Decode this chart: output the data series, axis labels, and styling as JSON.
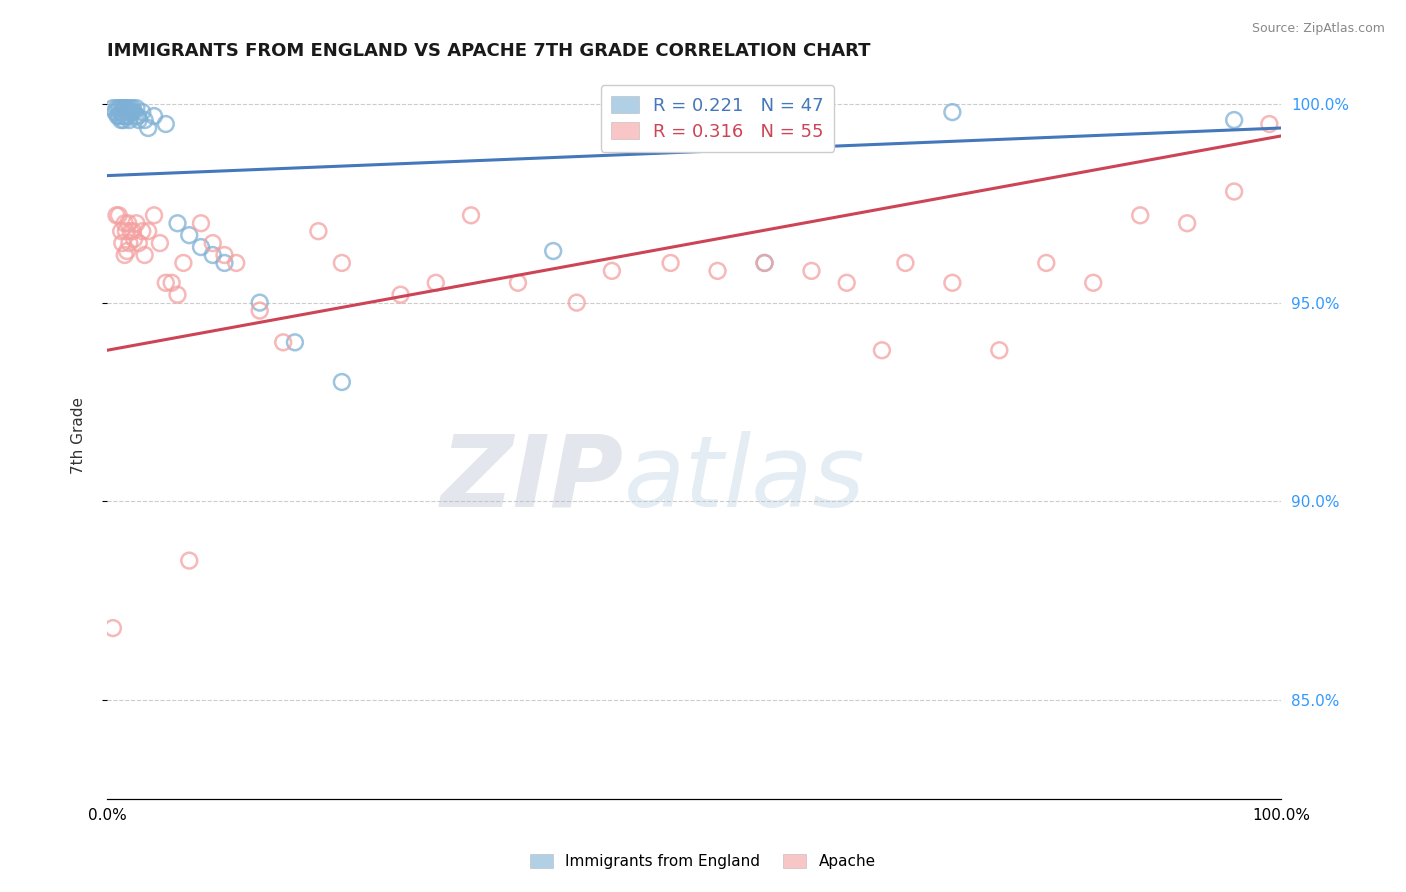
{
  "title": "IMMIGRANTS FROM ENGLAND VS APACHE 7TH GRADE CORRELATION CHART",
  "source_text": "Source: ZipAtlas.com",
  "ylabel": "7th Grade",
  "xlim": [
    0.0,
    1.0
  ],
  "ylim": [
    0.825,
    1.008
  ],
  "yticks": [
    0.85,
    0.9,
    0.95,
    1.0
  ],
  "ytick_labels": [
    "85.0%",
    "90.0%",
    "95.0%",
    "100.0%"
  ],
  "blue_R": 0.221,
  "blue_N": 47,
  "pink_R": 0.316,
  "pink_N": 55,
  "blue_color": "#7EB0D5",
  "pink_color": "#F4A0A0",
  "blue_line_color": "#4477BB",
  "pink_line_color": "#CC4455",
  "legend_label_blue": "Immigrants from England",
  "legend_label_pink": "Apache",
  "watermark_zip": "ZIP",
  "watermark_atlas": "atlas",
  "blue_line_start_y": 0.982,
  "blue_line_end_y": 0.994,
  "pink_line_start_y": 0.938,
  "pink_line_end_y": 0.992,
  "blue_x": [
    0.005,
    0.007,
    0.008,
    0.009,
    0.01,
    0.01,
    0.011,
    0.012,
    0.012,
    0.013,
    0.013,
    0.014,
    0.014,
    0.015,
    0.015,
    0.016,
    0.016,
    0.017,
    0.018,
    0.018,
    0.019,
    0.019,
    0.02,
    0.021,
    0.022,
    0.023,
    0.024,
    0.025,
    0.026,
    0.027,
    0.03,
    0.032,
    0.035,
    0.04,
    0.05,
    0.06,
    0.07,
    0.08,
    0.09,
    0.1,
    0.13,
    0.16,
    0.2,
    0.38,
    0.56,
    0.72,
    0.96
  ],
  "blue_y": [
    0.999,
    0.998,
    0.999,
    0.997,
    0.999,
    0.997,
    0.999,
    0.998,
    0.996,
    0.999,
    0.997,
    0.999,
    0.996,
    0.999,
    0.997,
    0.999,
    0.997,
    0.998,
    0.999,
    0.997,
    0.998,
    0.996,
    0.999,
    0.998,
    0.999,
    0.998,
    0.997,
    0.999,
    0.997,
    0.996,
    0.998,
    0.996,
    0.994,
    0.997,
    0.995,
    0.97,
    0.967,
    0.964,
    0.962,
    0.96,
    0.95,
    0.94,
    0.93,
    0.963,
    0.96,
    0.998,
    0.996
  ],
  "pink_x": [
    0.005,
    0.008,
    0.01,
    0.012,
    0.013,
    0.015,
    0.015,
    0.016,
    0.017,
    0.018,
    0.019,
    0.02,
    0.022,
    0.023,
    0.025,
    0.027,
    0.03,
    0.032,
    0.035,
    0.04,
    0.045,
    0.05,
    0.055,
    0.06,
    0.065,
    0.07,
    0.08,
    0.09,
    0.1,
    0.11,
    0.13,
    0.15,
    0.18,
    0.2,
    0.25,
    0.28,
    0.31,
    0.35,
    0.4,
    0.43,
    0.48,
    0.52,
    0.56,
    0.6,
    0.63,
    0.66,
    0.68,
    0.72,
    0.76,
    0.8,
    0.84,
    0.88,
    0.92,
    0.96,
    0.99
  ],
  "pink_y": [
    0.868,
    0.972,
    0.972,
    0.968,
    0.965,
    0.97,
    0.962,
    0.968,
    0.963,
    0.97,
    0.965,
    0.968,
    0.968,
    0.966,
    0.97,
    0.965,
    0.968,
    0.962,
    0.968,
    0.972,
    0.965,
    0.955,
    0.955,
    0.952,
    0.96,
    0.885,
    0.97,
    0.965,
    0.962,
    0.96,
    0.948,
    0.94,
    0.968,
    0.96,
    0.952,
    0.955,
    0.972,
    0.955,
    0.95,
    0.958,
    0.96,
    0.958,
    0.96,
    0.958,
    0.955,
    0.938,
    0.96,
    0.955,
    0.938,
    0.96,
    0.955,
    0.972,
    0.97,
    0.978,
    0.995
  ]
}
